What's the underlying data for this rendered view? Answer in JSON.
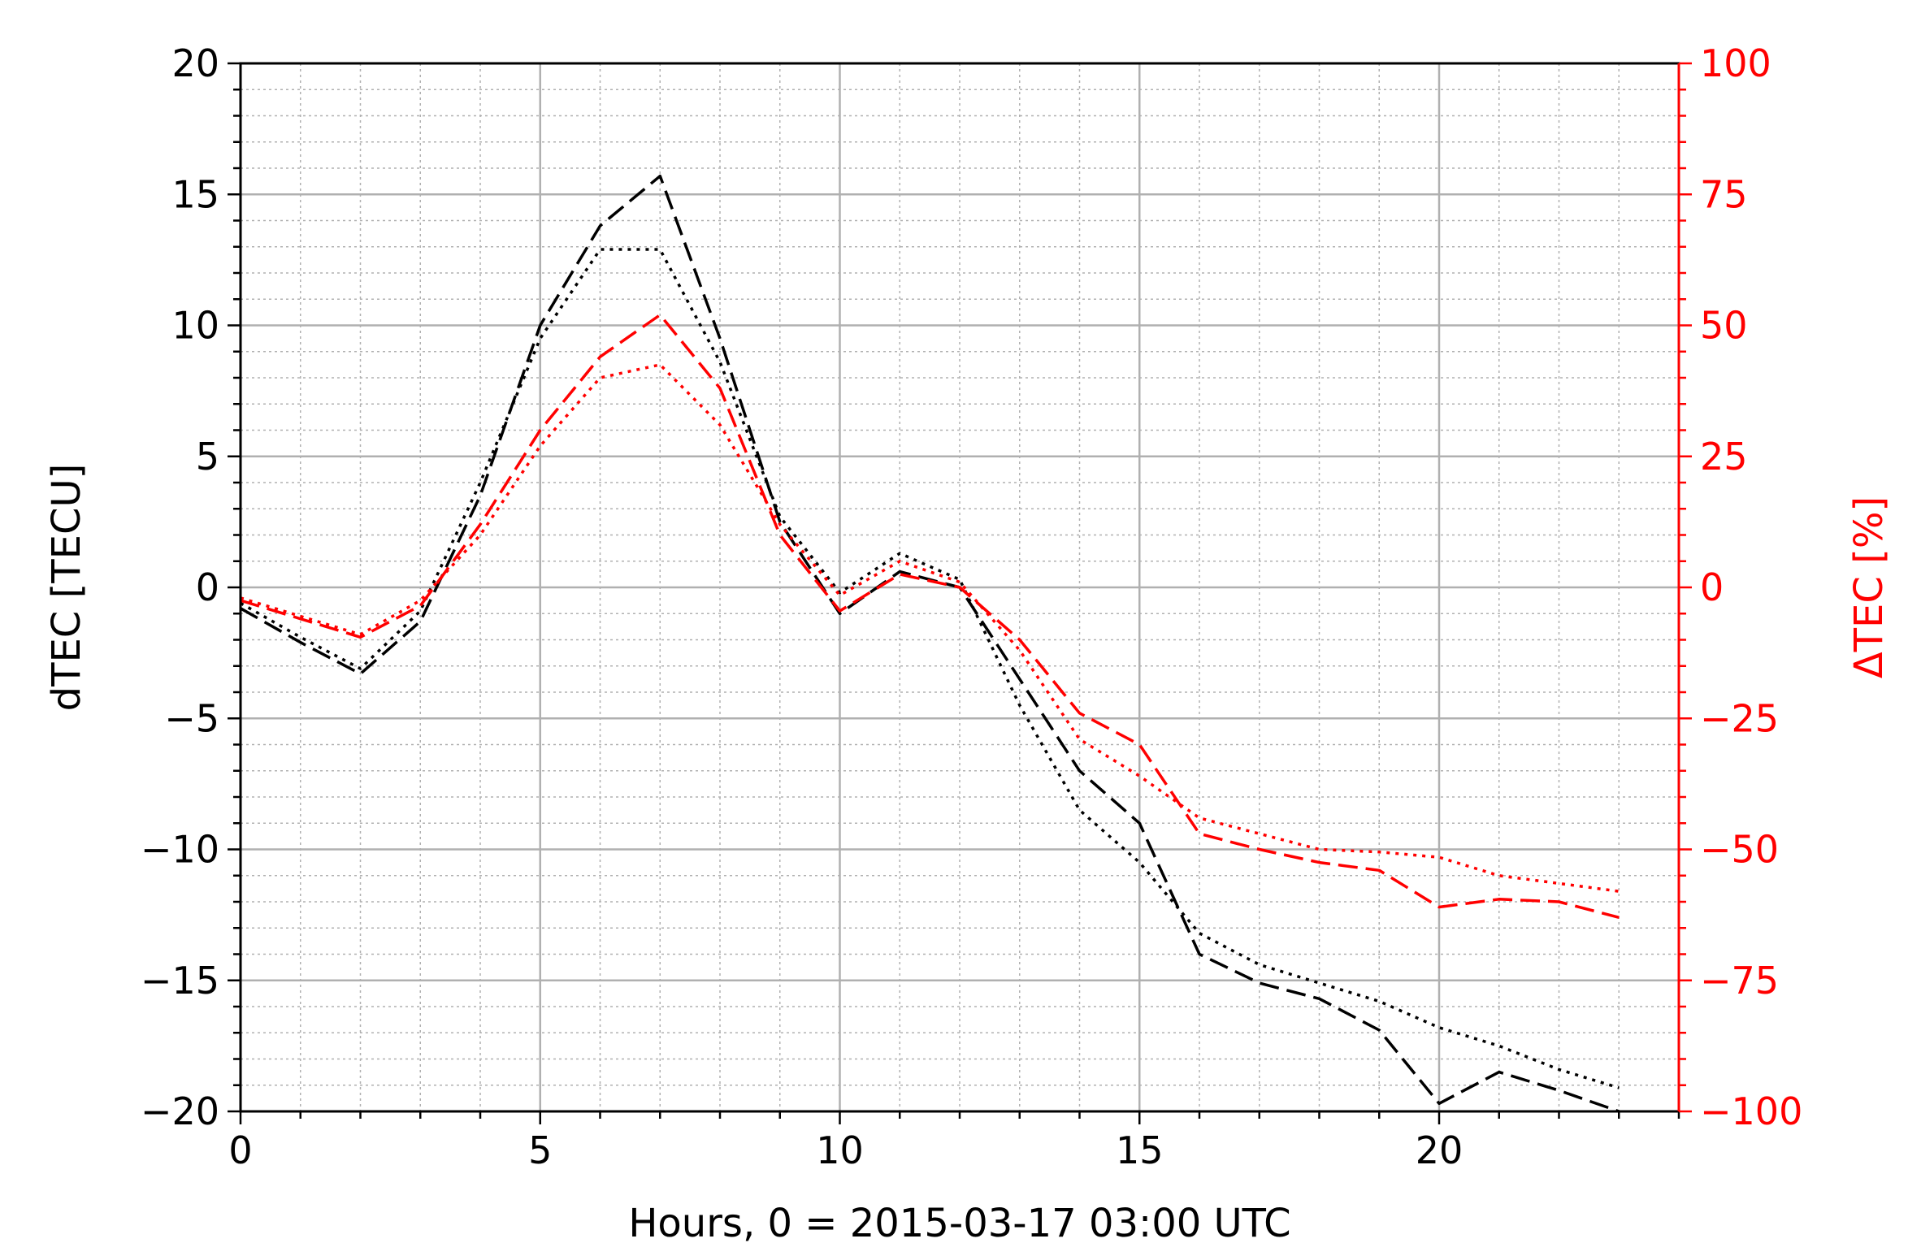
{
  "chart_data": {
    "type": "line",
    "title": "",
    "xlabel": "Hours, 0 = 2015-03-17 03:00 UTC",
    "ylabel": "dTEC [TECU]",
    "y2label": "ΔTEC [%]",
    "xlim": [
      0,
      24
    ],
    "ylim": [
      -20,
      20
    ],
    "y2lim": [
      -100,
      100
    ],
    "x_ticks": [
      0,
      5,
      10,
      15,
      20
    ],
    "y_ticks": [
      -20,
      -15,
      -10,
      -5,
      0,
      5,
      10,
      15,
      20
    ],
    "y2_ticks": [
      -100,
      -75,
      -50,
      -25,
      0,
      25,
      50,
      75,
      100
    ],
    "grid": true,
    "colors": {
      "left_axis": "#000000",
      "right_axis": "#ff0000",
      "grid": "#b0b0b0"
    },
    "x": [
      0,
      1,
      2,
      3,
      4,
      5,
      6,
      7,
      8,
      9,
      10,
      11,
      12,
      13,
      14,
      15,
      16,
      17,
      18,
      19,
      20,
      21,
      22,
      23
    ],
    "series": [
      {
        "axis": "left",
        "color": "#000000",
        "dash": "dashed",
        "values": [
          -0.8,
          -2.1,
          -3.3,
          -1.3,
          3.5,
          10.0,
          13.8,
          15.7,
          9.5,
          2.5,
          -1.0,
          0.6,
          0.0,
          -3.5,
          -7.0,
          -9.0,
          -14.0,
          -15.1,
          -15.7,
          -16.9,
          -19.7,
          -18.5,
          -19.2,
          -20.0
        ]
      },
      {
        "axis": "left",
        "color": "#000000",
        "dash": "dotted",
        "values": [
          -0.6,
          -1.9,
          -3.1,
          -0.9,
          4.0,
          9.5,
          12.9,
          12.9,
          8.6,
          2.7,
          -0.2,
          1.3,
          0.3,
          -4.5,
          -8.5,
          -10.5,
          -13.2,
          -14.4,
          -15.1,
          -15.8,
          -16.8,
          -17.5,
          -18.4,
          -19.1
        ]
      },
      {
        "axis": "right",
        "color": "#ff0000",
        "dash": "dashed",
        "values": [
          -2.5,
          -6.0,
          -9.5,
          -3.5,
          12.0,
          30.0,
          44.0,
          52.0,
          38.0,
          10.0,
          -4.5,
          2.5,
          0.0,
          -10.0,
          -24.0,
          -30.0,
          -47.0,
          -50.0,
          -52.5,
          -54.0,
          -61.0,
          -59.5,
          -60.0,
          -63.0
        ]
      },
      {
        "axis": "right",
        "color": "#ff0000",
        "dash": "dotted",
        "values": [
          -2.0,
          -5.5,
          -9.0,
          -2.5,
          10.0,
          27.0,
          40.0,
          42.5,
          31.0,
          12.0,
          -1.5,
          5.0,
          1.0,
          -12.0,
          -29.0,
          -36.0,
          -44.0,
          -47.0,
          -50.0,
          -50.5,
          -51.5,
          -55.0,
          -56.5,
          -58.0
        ]
      }
    ]
  }
}
